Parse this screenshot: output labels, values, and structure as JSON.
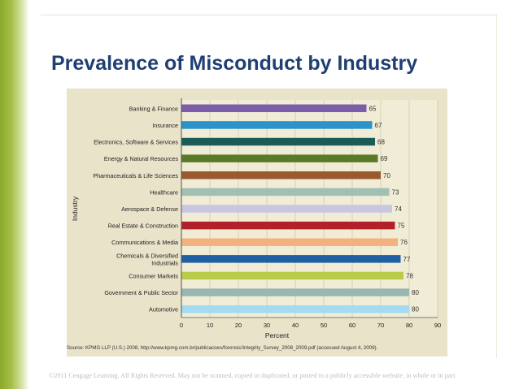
{
  "slide": {
    "title": "Prevalence of Misconduct by Industry",
    "source": "Source: KPMG LLP (U.S.) 2008, http://www.kpmg.com.br/publicacoes/forensic/Integrity_Survey_2008_2009.pdf (accessed August 4, 2009).",
    "copyright": "©2011 Cengage Learning. All Rights Reserved. May not be scanned, copied or duplicated, or posted to a publicly accessible website, in whole or in part."
  },
  "chart_data": {
    "type": "bar",
    "orientation": "horizontal",
    "title": "",
    "xlabel": "Percent",
    "ylabel": "Industry",
    "xlim": [
      0,
      90
    ],
    "xticks": [
      0,
      10,
      20,
      30,
      40,
      50,
      60,
      70,
      80,
      90
    ],
    "grid": true,
    "bars": [
      {
        "label": [
          "Banking & Finance"
        ],
        "value": 65,
        "color": "#7b5ea7"
      },
      {
        "label": [
          "Insurance"
        ],
        "value": 67,
        "color": "#2a93c9"
      },
      {
        "label": [
          "Electronics, Software & Services"
        ],
        "value": 68,
        "color": "#1c5c56"
      },
      {
        "label": [
          "Energy & Natural Resources"
        ],
        "value": 69,
        "color": "#5a7a28"
      },
      {
        "label": [
          "Pharmaceuticals & Life Sciences"
        ],
        "value": 70,
        "color": "#9a5a30"
      },
      {
        "label": [
          "Healthcare"
        ],
        "value": 73,
        "color": "#9fc0b3"
      },
      {
        "label": [
          "Aerospace & Defense"
        ],
        "value": 74,
        "color": "#c9c6e1"
      },
      {
        "label": [
          "Real Estate & Construction"
        ],
        "value": 75,
        "color": "#b3202a"
      },
      {
        "label": [
          "Communications & Media"
        ],
        "value": 76,
        "color": "#f2b27d"
      },
      {
        "label": [
          "Chemicals & Diversified",
          "Industrials"
        ],
        "value": 77,
        "color": "#1f5fa3"
      },
      {
        "label": [
          "Consumer Markets"
        ],
        "value": 78,
        "color": "#b8cc4a"
      },
      {
        "label": [
          "Government & Public Sector"
        ],
        "value": 80,
        "color": "#98b7b2"
      },
      {
        "label": [
          "Automotive"
        ],
        "value": 80,
        "color": "#a4dbf2"
      }
    ]
  }
}
